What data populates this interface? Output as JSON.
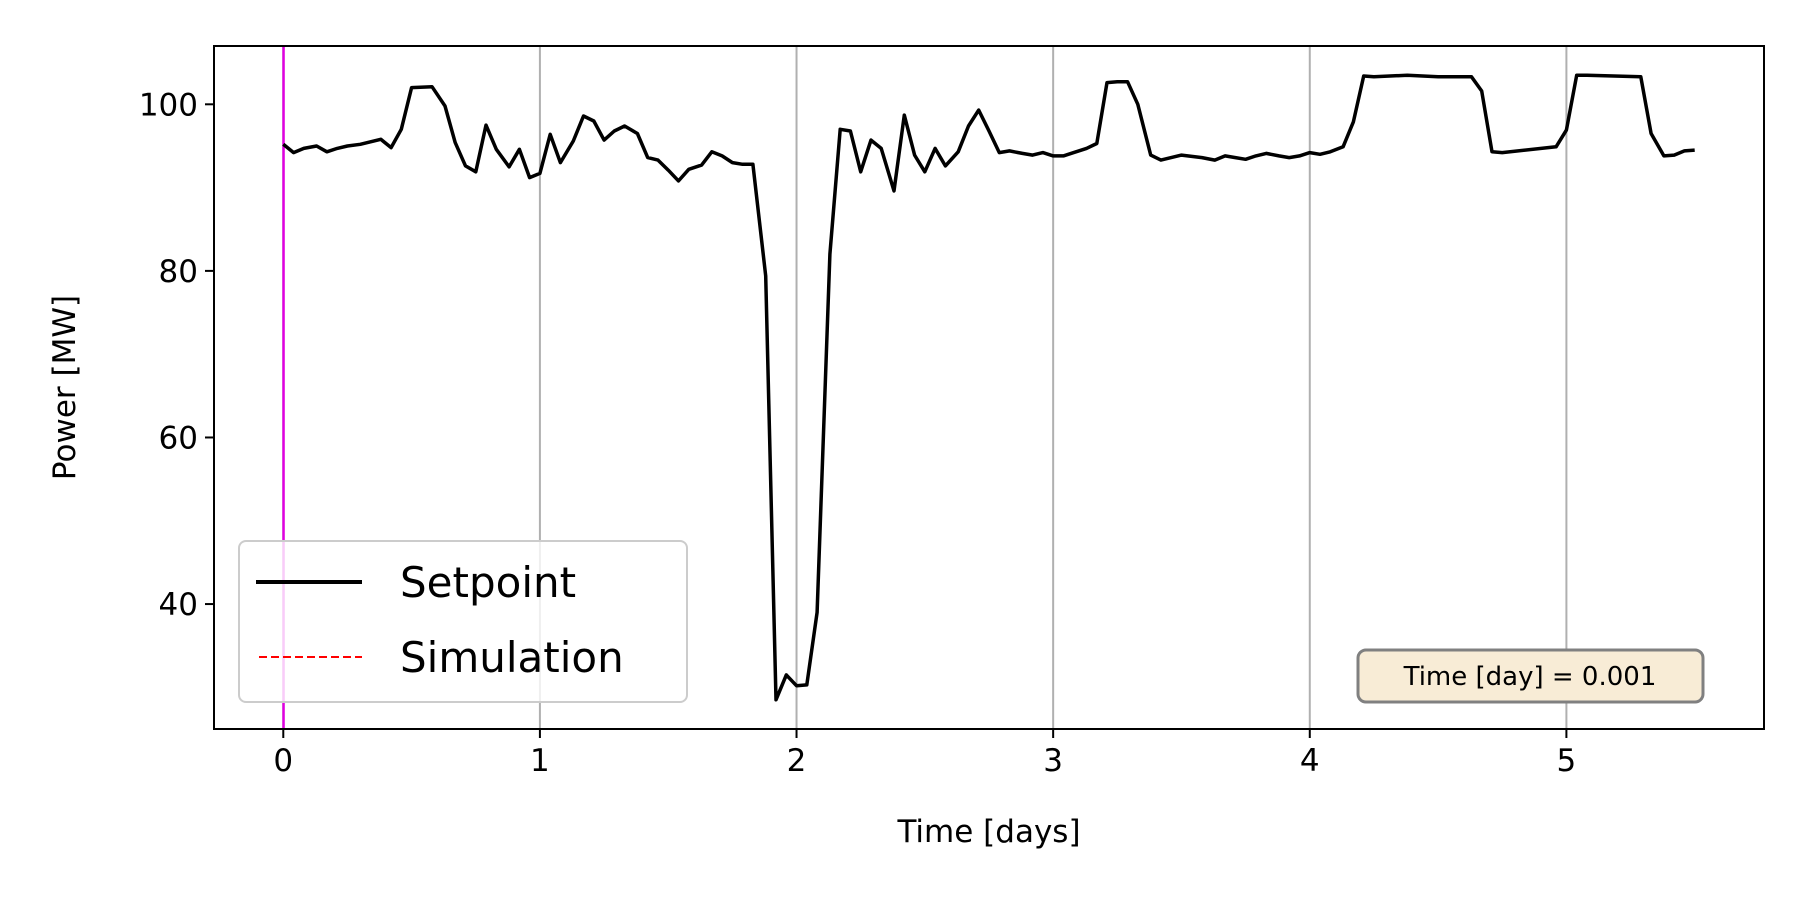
{
  "chart_data": {
    "type": "line",
    "xlabel": "Time [days]",
    "ylabel": "Power [MW]",
    "xlim": [
      -0.27,
      5.77
    ],
    "ylim": [
      25,
      107
    ],
    "xticks": [
      0,
      1,
      2,
      3,
      4,
      5
    ],
    "xtick_labels": [
      "0",
      "1",
      "2",
      "3",
      "4",
      "5"
    ],
    "yticks": [
      40,
      60,
      80,
      100
    ],
    "ytick_labels": [
      "40",
      "60",
      "80",
      "100"
    ],
    "grid": "vertical gridlines at x ticks",
    "legend_position": "lower-left",
    "current_time_marker": 0.001,
    "annotation": "Time [day] = 0.001",
    "annotation_position": "lower-right",
    "colors": {
      "setpoint": "#000000",
      "simulation": "#ff0000",
      "time_marker": "#e000e0",
      "grid": "#b0b0b0",
      "annotation_bg": "#f8ecd6",
      "annotation_border": "#808080"
    },
    "series": [
      {
        "name": "Setpoint",
        "style": "solid",
        "x": [
          0,
          0.04,
          0.08,
          0.13,
          0.17,
          0.21,
          0.25,
          0.3,
          0.38,
          0.42,
          0.46,
          0.5,
          0.58,
          0.63,
          0.67,
          0.71,
          0.75,
          0.79,
          0.83,
          0.88,
          0.92,
          0.96,
          1.0,
          1.04,
          1.08,
          1.13,
          1.17,
          1.21,
          1.25,
          1.29,
          1.33,
          1.38,
          1.42,
          1.46,
          1.5,
          1.54,
          1.58,
          1.63,
          1.67,
          1.71,
          1.75,
          1.79,
          1.83,
          1.88,
          1.92,
          1.96,
          2.0,
          2.04,
          2.08,
          2.13,
          2.17,
          2.21,
          2.25,
          2.29,
          2.33,
          2.38,
          2.42,
          2.46,
          2.5,
          2.54,
          2.58,
          2.63,
          2.67,
          2.71,
          2.75,
          2.79,
          2.83,
          2.88,
          2.92,
          2.96,
          3.0,
          3.04,
          3.08,
          3.13,
          3.17,
          3.21,
          3.25,
          3.29,
          3.33,
          3.38,
          3.42,
          3.5,
          3.58,
          3.63,
          3.67,
          3.71,
          3.75,
          3.79,
          3.83,
          3.88,
          3.92,
          3.96,
          4.0,
          4.04,
          4.08,
          4.13,
          4.17,
          4.21,
          4.25,
          4.38,
          4.5,
          4.63,
          4.67,
          4.71,
          4.75,
          4.96,
          5.0,
          5.04,
          5.08,
          5.29,
          5.33,
          5.38,
          5.42,
          5.46,
          5.5
        ],
        "y": [
          95.2,
          94.2,
          94.7,
          95.0,
          94.3,
          94.7,
          95.0,
          95.2,
          95.8,
          94.8,
          97.0,
          102.0,
          102.1,
          99.8,
          95.4,
          92.6,
          91.9,
          97.5,
          94.6,
          92.5,
          94.6,
          91.2,
          91.7,
          96.4,
          93.0,
          95.6,
          98.6,
          98.0,
          95.7,
          96.8,
          97.4,
          96.5,
          93.6,
          93.3,
          92.1,
          90.8,
          92.2,
          92.7,
          94.3,
          93.8,
          93.0,
          92.8,
          92.8,
          79.4,
          28.5,
          31.5,
          30.2,
          30.3,
          39.0,
          82.0,
          97.0,
          96.8,
          91.9,
          95.7,
          94.7,
          89.6,
          98.7,
          93.9,
          91.9,
          94.7,
          92.6,
          94.3,
          97.4,
          99.3,
          96.8,
          94.2,
          94.4,
          94.1,
          93.9,
          94.2,
          93.8,
          93.8,
          94.2,
          94.7,
          95.3,
          102.6,
          102.7,
          102.7,
          100.0,
          93.9,
          93.3,
          93.9,
          93.6,
          93.3,
          93.8,
          93.6,
          93.4,
          93.8,
          94.1,
          93.8,
          93.6,
          93.8,
          94.2,
          94.0,
          94.3,
          94.9,
          97.9,
          103.4,
          103.3,
          103.5,
          103.3,
          103.3,
          101.6,
          94.3,
          94.2,
          94.9,
          96.9,
          103.5,
          103.5,
          103.3,
          96.5,
          93.8,
          93.9,
          94.4,
          94.5
        ]
      },
      {
        "name": "Simulation",
        "style": "dashed",
        "x": [],
        "y": []
      }
    ]
  }
}
